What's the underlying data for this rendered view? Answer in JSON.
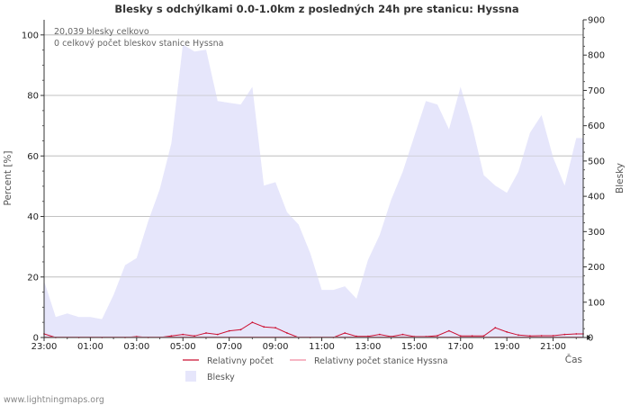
{
  "chart_data": {
    "type": "area",
    "title": "Blesky s odchýlkami 0.0-1.0km z posledných 24h pre stanicu: Hyssna",
    "ylabel": "Percent   [%]",
    "y2label": "Blesky",
    "xlabel": "Čas",
    "ylim": [
      0,
      105
    ],
    "y2lim": [
      0,
      900
    ],
    "y_ticks": [
      0,
      20,
      40,
      60,
      80,
      100
    ],
    "y2_ticks": [
      0,
      100,
      200,
      300,
      400,
      500,
      600,
      700,
      800,
      900
    ],
    "x_tick_labels": [
      "23:00",
      "01:00",
      "03:00",
      "05:00",
      "07:00",
      "09:00",
      "11:00",
      "13:00",
      "15:00",
      "17:00",
      "19:00",
      "21:00"
    ],
    "x_range_hours": [
      0,
      23.3
    ],
    "annotations": [
      "20,039 blesky celkovo",
      "0 celkový počet bleskov stanice Hyssna"
    ],
    "legend": [
      {
        "label": "Relativny počet",
        "color": "#cc1133",
        "kind": "line"
      },
      {
        "label": "Relativny počet stanice Hyssna",
        "color": "#f08aa0",
        "kind": "line"
      },
      {
        "label": "Blesky",
        "color": "#e6e6fb",
        "kind": "area"
      }
    ],
    "series": [
      {
        "name": "Blesky",
        "axis": "right",
        "x": [
          0,
          0.5,
          1,
          1.5,
          2,
          2.5,
          3,
          3.5,
          4,
          4.5,
          5,
          5.5,
          6,
          6.5,
          7,
          7.5,
          8,
          8.5,
          9,
          9.5,
          10,
          10.5,
          11,
          11.5,
          12,
          12.5,
          13,
          13.5,
          14,
          14.5,
          15,
          15.5,
          16,
          16.5,
          17,
          17.5,
          18,
          18.5,
          19,
          19.5,
          20,
          20.5,
          21,
          21.5,
          22,
          22.5,
          23,
          23.3
        ],
        "values": [
          160,
          58,
          68,
          58,
          58,
          52,
          120,
          205,
          225,
          330,
          420,
          550,
          830,
          810,
          815,
          670,
          665,
          660,
          710,
          430,
          440,
          355,
          320,
          240,
          135,
          135,
          145,
          110,
          220,
          290,
          390,
          470,
          570,
          670,
          660,
          590,
          710,
          600,
          460,
          430,
          410,
          470,
          580,
          630,
          510,
          430,
          565,
          565
        ]
      },
      {
        "name": "Relativny počet",
        "axis": "left",
        "x": [
          0,
          0.5,
          1,
          1.5,
          2,
          2.5,
          3,
          3.5,
          4,
          4.5,
          5,
          5.5,
          6,
          6.5,
          7,
          7.5,
          8,
          8.5,
          9,
          9.5,
          10,
          10.5,
          11,
          11.5,
          12,
          12.5,
          13,
          13.5,
          14,
          14.5,
          15,
          15.5,
          16,
          16.5,
          17,
          17.5,
          18,
          18.5,
          19,
          19.5,
          20,
          20.5,
          21,
          21.5,
          22,
          22.5,
          23,
          23.3
        ],
        "values": [
          1.2,
          0,
          0,
          0,
          0,
          0,
          0,
          0,
          0.3,
          0,
          0,
          0.5,
          1.0,
          0.5,
          1.5,
          1.0,
          2.2,
          2.6,
          5.0,
          3.5,
          3.2,
          1.5,
          0,
          0,
          0,
          0,
          1.5,
          0.4,
          0.4,
          1.0,
          0.3,
          1.0,
          0.3,
          0.3,
          0.6,
          2.2,
          0.5,
          0.5,
          0.5,
          3.2,
          1.8,
          0.8,
          0.5,
          0.6,
          0.6,
          1.0,
          1.2,
          1.2
        ]
      },
      {
        "name": "Relativny počet stanice Hyssna",
        "axis": "left",
        "x": [
          0,
          23.3
        ],
        "values": [
          0,
          0
        ]
      }
    ]
  },
  "footer": "www.lightningmaps.org"
}
